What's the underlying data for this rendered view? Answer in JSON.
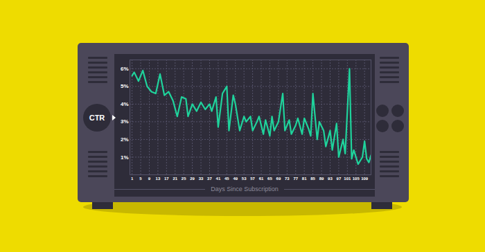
{
  "chart_data": {
    "type": "line",
    "ylabel": "CTR",
    "xlabel": "Days Since Subscription",
    "x": [
      1,
      2,
      4,
      6,
      8,
      10,
      12,
      14,
      16,
      18,
      20,
      22,
      24,
      26,
      27,
      29,
      31,
      33,
      35,
      37,
      38,
      40,
      41,
      43,
      45,
      46,
      48,
      49,
      51,
      53,
      54,
      56,
      57,
      59,
      60,
      62,
      63,
      65,
      66,
      67,
      69,
      71,
      72,
      74,
      75,
      77,
      78,
      80,
      81,
      83,
      84,
      85,
      87,
      88,
      90,
      91,
      93,
      94,
      96,
      97,
      99,
      100,
      102,
      103,
      104,
      106,
      108,
      109,
      110,
      111,
      112
    ],
    "values": [
      5.6,
      5.8,
      5.3,
      5.9,
      5.0,
      4.7,
      4.6,
      5.7,
      4.5,
      4.7,
      4.2,
      3.3,
      4.4,
      4.3,
      3.3,
      4.0,
      3.6,
      4.1,
      3.7,
      4.0,
      3.6,
      4.4,
      2.7,
      4.6,
      5.0,
      2.5,
      4.5,
      4.0,
      2.5,
      3.3,
      3.0,
      3.3,
      2.5,
      3.0,
      3.3,
      2.3,
      3.1,
      2.2,
      3.3,
      2.5,
      3.0,
      4.6,
      2.5,
      3.1,
      2.3,
      2.8,
      3.2,
      2.3,
      3.2,
      2.6,
      2.2,
      4.6,
      2.0,
      3.0,
      2.5,
      1.6,
      2.5,
      1.4,
      2.9,
      1.0,
      2.0,
      1.2,
      6.0,
      0.9,
      1.4,
      0.6,
      1.0,
      1.9,
      0.9,
      0.7,
      1.1
    ],
    "color": "#1fd39c",
    "xlim": [
      0,
      112
    ],
    "xticks": [
      1,
      5,
      9,
      13,
      17,
      21,
      25,
      29,
      33,
      37,
      41,
      45,
      49,
      53,
      57,
      61,
      65,
      69,
      73,
      77,
      81,
      85,
      89,
      93,
      97,
      101,
      105,
      109
    ],
    "ylim": [
      0,
      6.5
    ],
    "yticks": [
      {
        "value": 1,
        "label": "1%"
      },
      {
        "value": 2,
        "label": "2%"
      },
      {
        "value": 3,
        "label": "3%"
      },
      {
        "value": 4,
        "label": "4%"
      },
      {
        "value": 5,
        "label": "5%"
      },
      {
        "value": 6,
        "label": "6%"
      }
    ],
    "grid": true
  }
}
